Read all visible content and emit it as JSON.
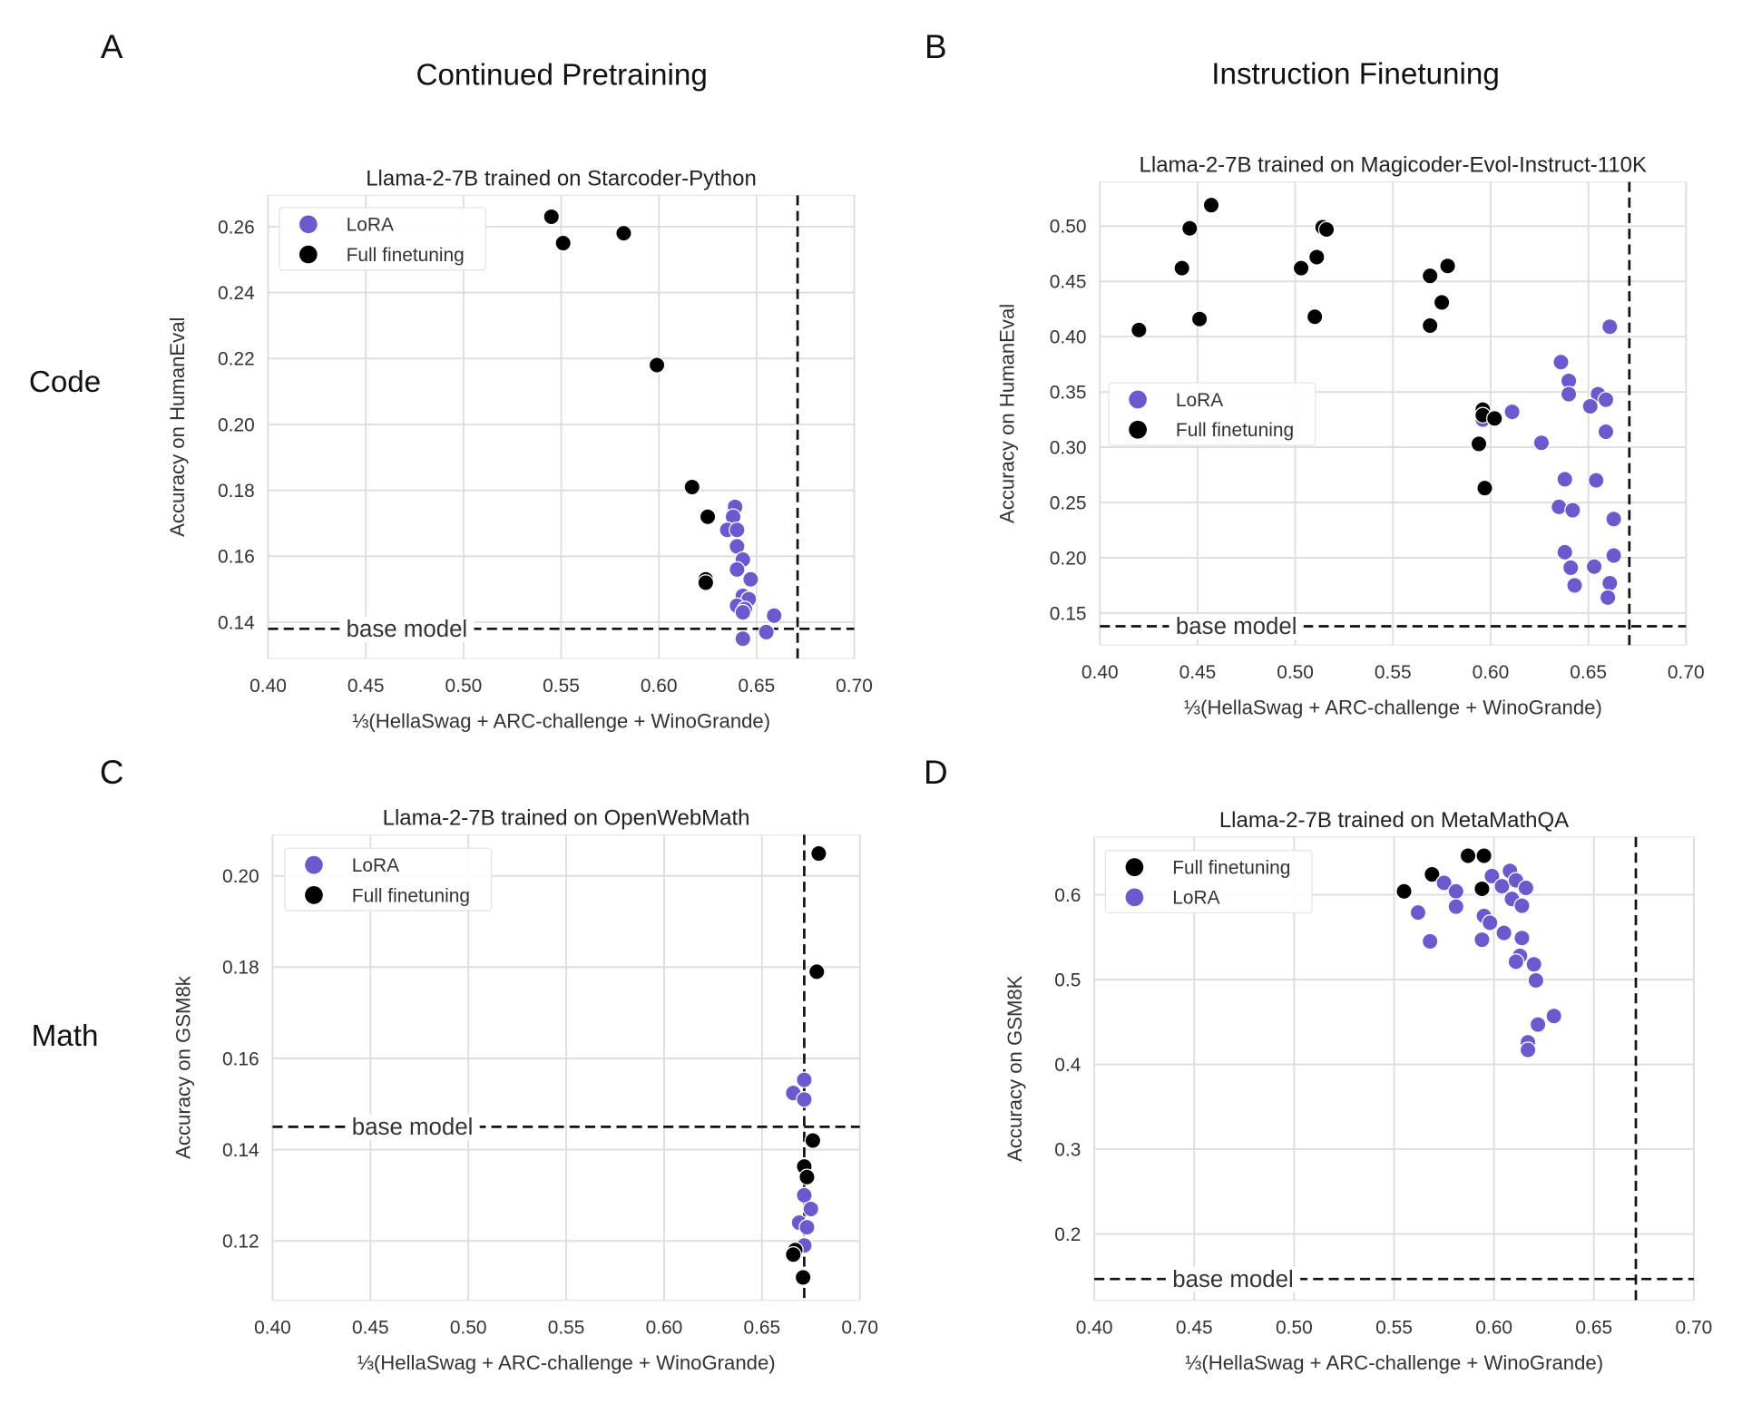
{
  "figure": {
    "column_headers": [
      "Continued Pretraining",
      "Instruction Finetuning"
    ],
    "row_labels": [
      "Code",
      "Math"
    ],
    "panel_letters": [
      "A",
      "B",
      "C",
      "D"
    ]
  },
  "colors": {
    "lora": "#6a5acd",
    "full_finetuning": "#000000",
    "grid": "#dddddd"
  },
  "chart_data": [
    {
      "type": "scatter",
      "title": "Llama-2-7B trained on Starcoder-Python",
      "xlabel": "⅓(HellaSwag + ARC-challenge + WinoGrande)",
      "ylabel": "Accuracy on HumanEval",
      "xlim": [
        0.4,
        0.7
      ],
      "ylim": [
        0.129,
        0.2695
      ],
      "xticks": [
        "0.40",
        "0.45",
        "0.50",
        "0.55",
        "0.60",
        "0.65",
        "0.70"
      ],
      "yticks": [
        "0.14",
        "0.16",
        "0.18",
        "0.20",
        "0.22",
        "0.24",
        "0.26"
      ],
      "grid": true,
      "legend_position": "top-left",
      "reference_lines": {
        "base_model_label": "base model",
        "base_model_y": 0.138,
        "vertical_x": 0.671
      },
      "series": [
        {
          "name": "LoRA",
          "color": "#6a5acd",
          "points": [
            [
              0.639,
              0.175
            ],
            [
              0.638,
              0.172
            ],
            [
              0.635,
              0.168
            ],
            [
              0.64,
              0.168
            ],
            [
              0.64,
              0.163
            ],
            [
              0.643,
              0.159
            ],
            [
              0.64,
              0.156
            ],
            [
              0.647,
              0.153
            ],
            [
              0.643,
              0.148
            ],
            [
              0.646,
              0.147
            ],
            [
              0.64,
              0.145
            ],
            [
              0.644,
              0.144
            ],
            [
              0.643,
              0.143
            ],
            [
              0.659,
              0.142
            ],
            [
              0.655,
              0.137
            ],
            [
              0.643,
              0.135
            ]
          ]
        },
        {
          "name": "Full finetuning",
          "color": "#000000",
          "points": [
            [
              0.545,
              0.263
            ],
            [
              0.551,
              0.255
            ],
            [
              0.582,
              0.258
            ],
            [
              0.599,
              0.218
            ],
            [
              0.617,
              0.181
            ],
            [
              0.625,
              0.172
            ],
            [
              0.624,
              0.153
            ],
            [
              0.624,
              0.152
            ]
          ]
        }
      ]
    },
    {
      "type": "scatter",
      "title": "Llama-2-7B trained on Magicoder-Evol-Instruct-110K",
      "xlabel": "⅓(HellaSwag + ARC-challenge + WinoGrande)",
      "ylabel": "Accuracy on HumanEval",
      "xlim": [
        0.4,
        0.7
      ],
      "ylim": [
        0.121,
        0.54
      ],
      "xticks": [
        "0.40",
        "0.45",
        "0.50",
        "0.55",
        "0.60",
        "0.65",
        "0.70"
      ],
      "yticks": [
        "0.15",
        "0.20",
        "0.25",
        "0.30",
        "0.35",
        "0.40",
        "0.45",
        "0.50"
      ],
      "grid": true,
      "legend_position": "center-left",
      "reference_lines": {
        "base_model_label": "base model",
        "base_model_y": 0.138,
        "vertical_x": 0.671
      },
      "series": [
        {
          "name": "LoRA",
          "color": "#6a5acd",
          "points": [
            [
              0.661,
              0.409
            ],
            [
              0.636,
              0.377
            ],
            [
              0.64,
              0.36
            ],
            [
              0.64,
              0.348
            ],
            [
              0.655,
              0.348
            ],
            [
              0.659,
              0.343
            ],
            [
              0.651,
              0.337
            ],
            [
              0.611,
              0.332
            ],
            [
              0.596,
              0.325
            ],
            [
              0.659,
              0.314
            ],
            [
              0.626,
              0.304
            ],
            [
              0.638,
              0.271
            ],
            [
              0.654,
              0.27
            ],
            [
              0.635,
              0.246
            ],
            [
              0.642,
              0.243
            ],
            [
              0.663,
              0.235
            ],
            [
              0.638,
              0.205
            ],
            [
              0.663,
              0.202
            ],
            [
              0.641,
              0.191
            ],
            [
              0.653,
              0.192
            ],
            [
              0.661,
              0.177
            ],
            [
              0.643,
              0.175
            ],
            [
              0.66,
              0.164
            ]
          ]
        },
        {
          "name": "Full finetuning",
          "color": "#000000",
          "points": [
            [
              0.442,
              0.462
            ],
            [
              0.446,
              0.498
            ],
            [
              0.457,
              0.519
            ],
            [
              0.451,
              0.416
            ],
            [
              0.42,
              0.406
            ],
            [
              0.503,
              0.462
            ],
            [
              0.511,
              0.472
            ],
            [
              0.514,
              0.499
            ],
            [
              0.516,
              0.497
            ],
            [
              0.51,
              0.418
            ],
            [
              0.569,
              0.455
            ],
            [
              0.578,
              0.464
            ],
            [
              0.575,
              0.431
            ],
            [
              0.569,
              0.41
            ],
            [
              0.596,
              0.334
            ],
            [
              0.596,
              0.329
            ],
            [
              0.602,
              0.326
            ],
            [
              0.594,
              0.303
            ],
            [
              0.597,
              0.263
            ]
          ]
        }
      ]
    },
    {
      "type": "scatter",
      "title": "Llama-2-7B trained on OpenWebMath",
      "xlabel": "⅓(HellaSwag + ARC-challenge + WinoGrande)",
      "ylabel": "Accuracy on GSM8k",
      "xlim": [
        0.4,
        0.7
      ],
      "ylim": [
        0.107,
        0.209
      ],
      "xticks": [
        "0.40",
        "0.45",
        "0.50",
        "0.55",
        "0.60",
        "0.65",
        "0.70"
      ],
      "yticks": [
        "0.12",
        "0.14",
        "0.16",
        "0.18",
        "0.20"
      ],
      "grid": true,
      "legend_position": "top-left",
      "reference_lines": {
        "base_model_label": "base model",
        "base_model_y": 0.145,
        "vertical_x": 0.6716
      },
      "series": [
        {
          "name": "LoRA",
          "color": "#6a5acd",
          "points": [
            [
              0.6716,
              0.1553
            ],
            [
              0.666,
              0.1524
            ],
            [
              0.6716,
              0.151
            ],
            [
              0.6716,
              0.13
            ],
            [
              0.675,
              0.127
            ],
            [
              0.669,
              0.124
            ],
            [
              0.673,
              0.123
            ],
            [
              0.6716,
              0.119
            ]
          ]
        },
        {
          "name": "Full finetuning",
          "color": "#000000",
          "points": [
            [
              0.679,
              0.2049
            ],
            [
              0.678,
              0.179
            ],
            [
              0.676,
              0.142
            ],
            [
              0.6716,
              0.1363
            ],
            [
              0.673,
              0.134
            ],
            [
              0.667,
              0.118
            ],
            [
              0.666,
              0.117
            ],
            [
              0.671,
              0.112
            ]
          ]
        }
      ]
    },
    {
      "type": "scatter",
      "title": "Llama-2-7B trained on MetaMathQA",
      "xlabel": "⅓(HellaSwag + ARC-challenge + WinoGrande)",
      "ylabel": "Accuracy on GSM8K",
      "xlim": [
        0.4,
        0.7
      ],
      "ylim": [
        0.122,
        0.668
      ],
      "xticks": [
        "0.40",
        "0.45",
        "0.50",
        "0.55",
        "0.60",
        "0.65",
        "0.70"
      ],
      "yticks": [
        "0.2",
        "0.3",
        "0.4",
        "0.5",
        "0.6"
      ],
      "grid": true,
      "legend_position": "top-left",
      "reference_lines": {
        "base_model_label": "base model",
        "base_model_y": 0.147,
        "vertical_x": 0.671
      },
      "series": [
        {
          "name": "Full finetuning",
          "color": "#000000",
          "points": [
            [
              0.555,
              0.604
            ],
            [
              0.569,
              0.624
            ],
            [
              0.587,
              0.646
            ],
            [
              0.595,
              0.646
            ],
            [
              0.594,
              0.607
            ]
          ]
        },
        {
          "name": "LoRA",
          "color": "#6a5acd",
          "points": [
            [
              0.562,
              0.579
            ],
            [
              0.568,
              0.545
            ],
            [
              0.575,
              0.614
            ],
            [
              0.581,
              0.604
            ],
            [
              0.581,
              0.586
            ],
            [
              0.595,
              0.575
            ],
            [
              0.598,
              0.567
            ],
            [
              0.594,
              0.547
            ],
            [
              0.599,
              0.622
            ],
            [
              0.604,
              0.61
            ],
            [
              0.608,
              0.628
            ],
            [
              0.611,
              0.617
            ],
            [
              0.616,
              0.608
            ],
            [
              0.609,
              0.595
            ],
            [
              0.614,
              0.587
            ],
            [
              0.605,
              0.555
            ],
            [
              0.614,
              0.549
            ],
            [
              0.613,
              0.528
            ],
            [
              0.611,
              0.521
            ],
            [
              0.62,
              0.518
            ],
            [
              0.621,
              0.499
            ],
            [
              0.63,
              0.457
            ],
            [
              0.622,
              0.447
            ],
            [
              0.617,
              0.426
            ],
            [
              0.617,
              0.417
            ]
          ]
        }
      ]
    }
  ]
}
